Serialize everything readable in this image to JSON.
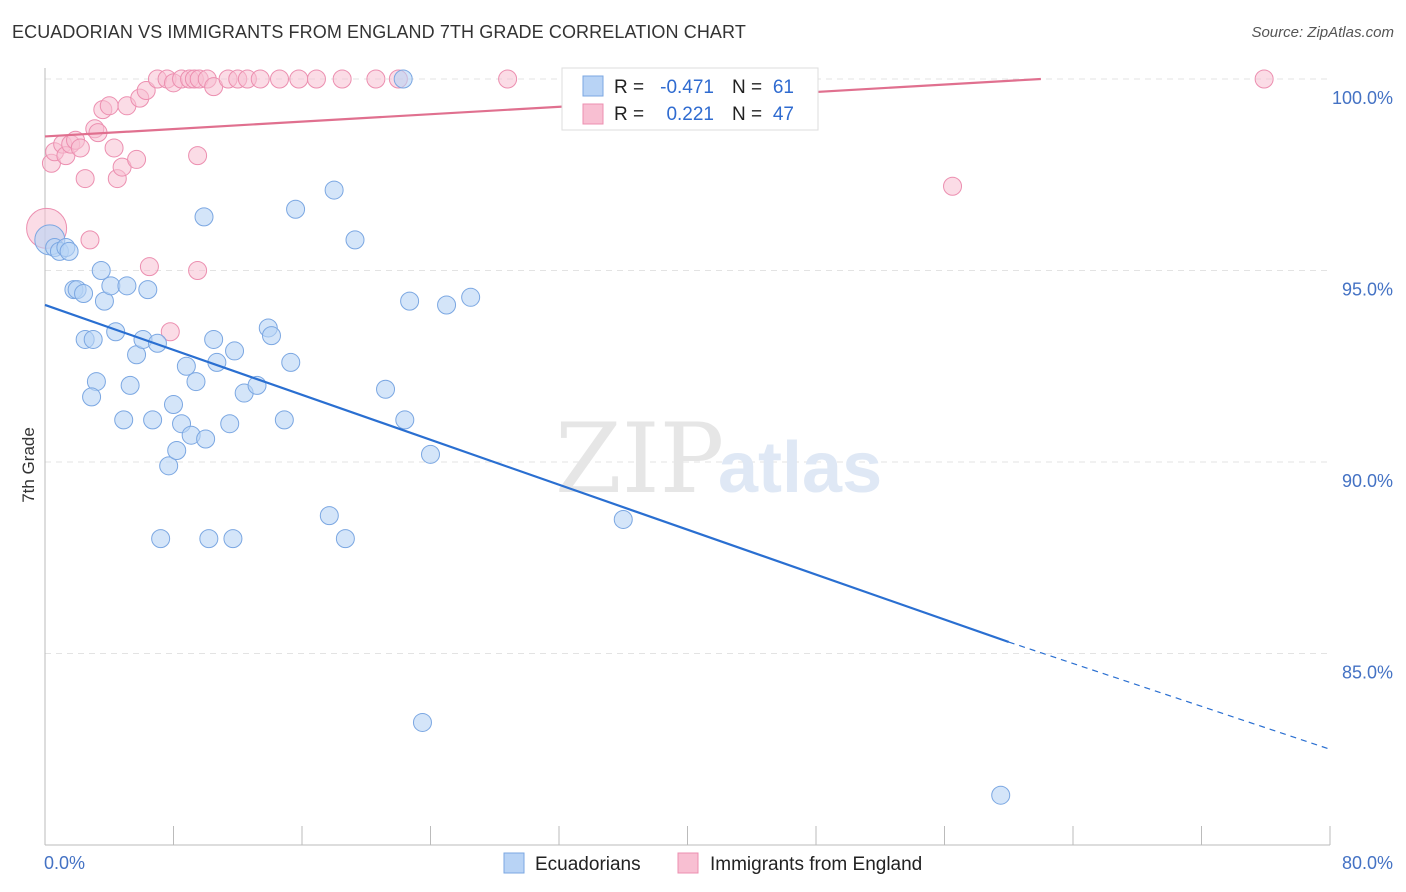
{
  "header": {
    "title": "ECUADORIAN VS IMMIGRANTS FROM ENGLAND 7TH GRADE CORRELATION CHART",
    "source": "Source: ZipAtlas.com"
  },
  "watermark": {
    "zip": "ZIP",
    "atlas": "atlas"
  },
  "colors": {
    "blue_fill": "#b8d3f5",
    "blue_stroke": "#7ba7e2",
    "blue_line": "#2a6fd1",
    "pink_fill": "#f8bfd2",
    "pink_stroke": "#ec8fb0",
    "pink_line": "#e0708f",
    "grid": "#e3e3e3",
    "tick_text": "#4472c4"
  },
  "legend_top": {
    "rows": [
      {
        "r_label": "R =",
        "r_value": "-0.471",
        "n_label": "N =",
        "n_value": "61"
      },
      {
        "r_label": "R =",
        "r_value": "0.221",
        "n_label": "N =",
        "n_value": "47"
      }
    ]
  },
  "legend_bottom": {
    "items": [
      "Ecuadorians",
      "Immigrants from England"
    ]
  },
  "chart_data": {
    "type": "scatter",
    "title": "ECUADORIAN VS IMMIGRANTS FROM ENGLAND 7TH GRADE CORRELATION CHART",
    "xlabel": "",
    "ylabel": "7th Grade",
    "xlim": [
      0,
      80
    ],
    "ylim": [
      80,
      101
    ],
    "x_tick_labels": {
      "min": "0.0%",
      "max": "80.0%"
    },
    "y_ticks": [
      {
        "value": 100,
        "label": "100.0%"
      },
      {
        "value": 95,
        "label": "95.0%"
      },
      {
        "value": 90,
        "label": "90.0%"
      },
      {
        "value": 85,
        "label": "85.0%"
      }
    ],
    "grid": true,
    "legend_position": "top-center",
    "series": [
      {
        "name": "Ecuadorians",
        "color": "#b8d3f5",
        "trend": {
          "x0": 0,
          "y0": 94.1,
          "x1": 60,
          "y1": 85.3,
          "dashed_to_x": 80,
          "dashed_to_y": 82.5
        },
        "points": [
          [
            0.3,
            95.8
          ],
          [
            0.6,
            95.6
          ],
          [
            0.9,
            95.5
          ],
          [
            1.3,
            95.6
          ],
          [
            1.5,
            95.5
          ],
          [
            1.8,
            94.5
          ],
          [
            2.0,
            94.5
          ],
          [
            2.4,
            94.4
          ],
          [
            2.5,
            93.2
          ],
          [
            3.2,
            92.1
          ],
          [
            2.9,
            91.7
          ],
          [
            3.5,
            95.0
          ],
          [
            3.7,
            94.2
          ],
          [
            4.1,
            94.6
          ],
          [
            4.4,
            93.4
          ],
          [
            5.1,
            94.6
          ],
          [
            5.3,
            92.0
          ],
          [
            5.7,
            92.8
          ],
          [
            6.1,
            93.2
          ],
          [
            6.4,
            94.5
          ],
          [
            6.7,
            91.1
          ],
          [
            7.0,
            93.1
          ],
          [
            7.7,
            89.9
          ],
          [
            8.0,
            91.5
          ],
          [
            8.2,
            90.3
          ],
          [
            8.5,
            91.0
          ],
          [
            8.8,
            92.5
          ],
          [
            9.1,
            90.7
          ],
          [
            9.4,
            92.1
          ],
          [
            10.0,
            90.6
          ],
          [
            10.5,
            93.2
          ],
          [
            10.7,
            92.6
          ],
          [
            11.5,
            91.0
          ],
          [
            11.8,
            92.9
          ],
          [
            12.4,
            91.8
          ],
          [
            13.2,
            92.0
          ],
          [
            13.9,
            93.5
          ],
          [
            14.1,
            93.3
          ],
          [
            14.9,
            91.1
          ],
          [
            15.3,
            92.6
          ],
          [
            7.2,
            88.0
          ],
          [
            10.2,
            88.0
          ],
          [
            11.7,
            88.0
          ],
          [
            17.7,
            88.6
          ],
          [
            18.7,
            88.0
          ],
          [
            9.9,
            96.4
          ],
          [
            15.6,
            96.6
          ],
          [
            18.0,
            97.1
          ],
          [
            19.3,
            95.8
          ],
          [
            21.2,
            91.9
          ],
          [
            22.4,
            91.1
          ],
          [
            22.7,
            94.2
          ],
          [
            24.0,
            90.2
          ],
          [
            25.0,
            94.1
          ],
          [
            26.5,
            94.3
          ],
          [
            22.3,
            100.0
          ],
          [
            23.5,
            83.2
          ],
          [
            36.0,
            88.5
          ],
          [
            59.5,
            81.3
          ],
          [
            4.9,
            91.1
          ],
          [
            3.0,
            93.2
          ]
        ]
      },
      {
        "name": "Immigrants from England",
        "color": "#f8bfd2",
        "trend": {
          "x0": 0,
          "y0": 98.5,
          "x1": 62,
          "y1": 100.0
        },
        "points": [
          [
            0.1,
            96.1
          ],
          [
            0.4,
            97.8
          ],
          [
            0.6,
            98.1
          ],
          [
            1.1,
            98.3
          ],
          [
            1.3,
            98.0
          ],
          [
            1.6,
            98.3
          ],
          [
            1.9,
            98.4
          ],
          [
            2.2,
            98.2
          ],
          [
            2.5,
            97.4
          ],
          [
            2.8,
            95.8
          ],
          [
            3.1,
            98.7
          ],
          [
            3.3,
            98.6
          ],
          [
            3.6,
            99.2
          ],
          [
            4.0,
            99.3
          ],
          [
            4.3,
            98.2
          ],
          [
            4.5,
            97.4
          ],
          [
            4.8,
            97.7
          ],
          [
            5.1,
            99.3
          ],
          [
            5.7,
            97.9
          ],
          [
            5.9,
            99.5
          ],
          [
            6.3,
            99.7
          ],
          [
            6.5,
            95.1
          ],
          [
            7.0,
            100.0
          ],
          [
            7.6,
            100.0
          ],
          [
            8.0,
            99.9
          ],
          [
            8.5,
            100.0
          ],
          [
            9.0,
            100.0
          ],
          [
            9.3,
            100.0
          ],
          [
            9.6,
            100.0
          ],
          [
            10.1,
            100.0
          ],
          [
            9.5,
            98.0
          ],
          [
            9.5,
            95.0
          ],
          [
            7.8,
            93.4
          ],
          [
            10.5,
            99.8
          ],
          [
            11.4,
            100.0
          ],
          [
            12.0,
            100.0
          ],
          [
            12.6,
            100.0
          ],
          [
            13.4,
            100.0
          ],
          [
            14.6,
            100.0
          ],
          [
            15.8,
            100.0
          ],
          [
            16.9,
            100.0
          ],
          [
            18.5,
            100.0
          ],
          [
            20.6,
            100.0
          ],
          [
            22.0,
            100.0
          ],
          [
            28.8,
            100.0
          ],
          [
            56.5,
            97.2
          ],
          [
            75.9,
            100.0
          ]
        ]
      }
    ]
  }
}
